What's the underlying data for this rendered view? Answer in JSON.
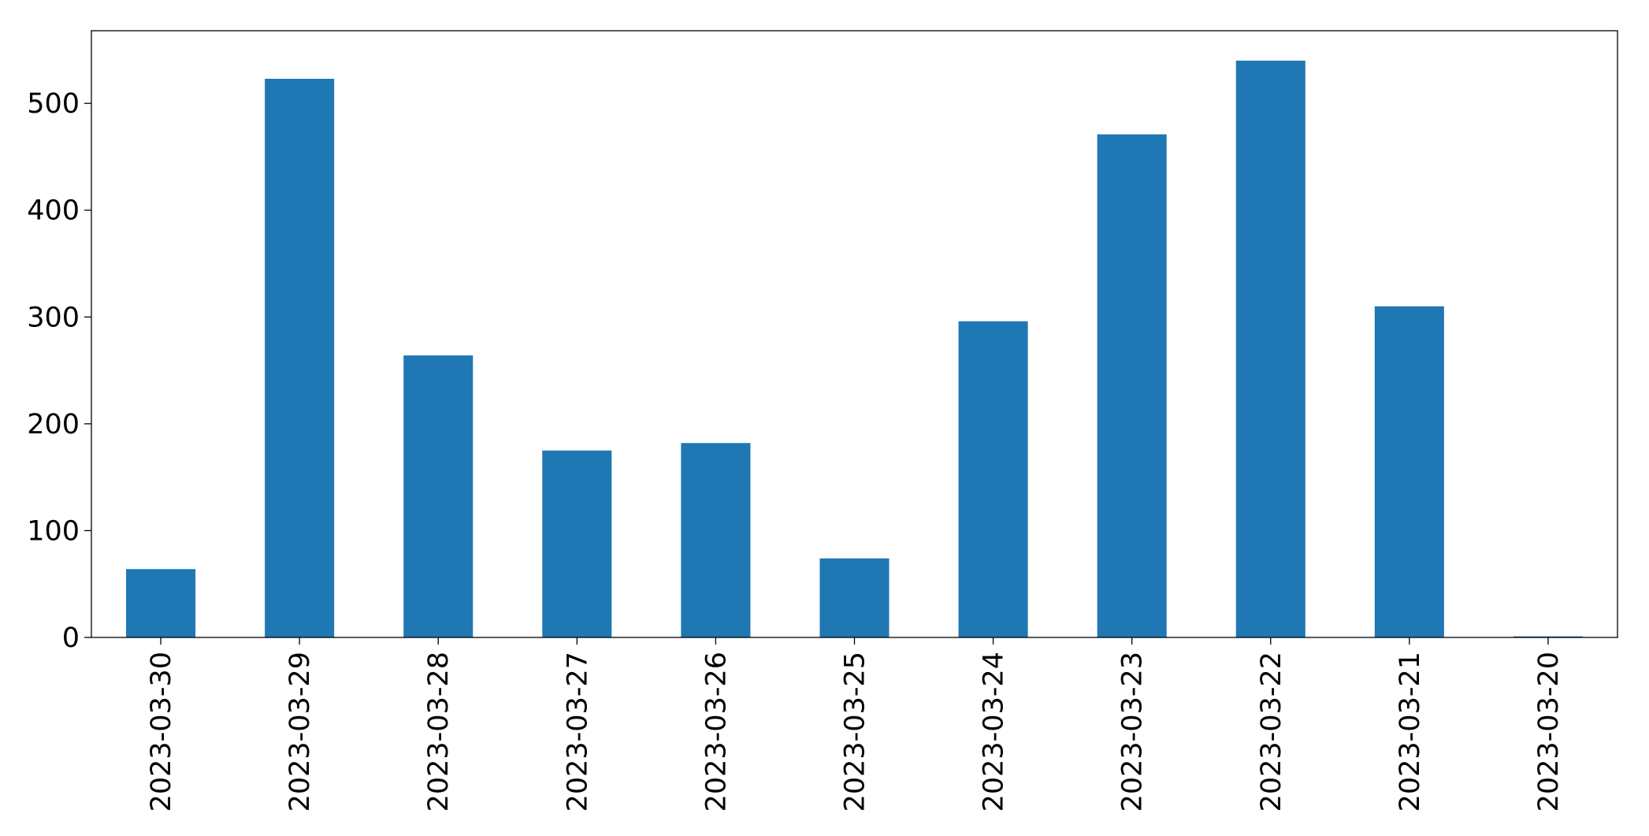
{
  "chart_data": {
    "type": "bar",
    "categories": [
      "2023-03-30",
      "2023-03-29",
      "2023-03-28",
      "2023-03-27",
      "2023-03-26",
      "2023-03-25",
      "2023-03-24",
      "2023-03-23",
      "2023-03-22",
      "2023-03-21",
      "2023-03-20"
    ],
    "values": [
      64,
      523,
      264,
      175,
      182,
      74,
      296,
      471,
      540,
      310,
      1
    ],
    "color": "#1f77b4",
    "ylim": [
      0,
      568
    ],
    "yticks": [
      0,
      100,
      200,
      300,
      400,
      500
    ],
    "grid": false
  }
}
